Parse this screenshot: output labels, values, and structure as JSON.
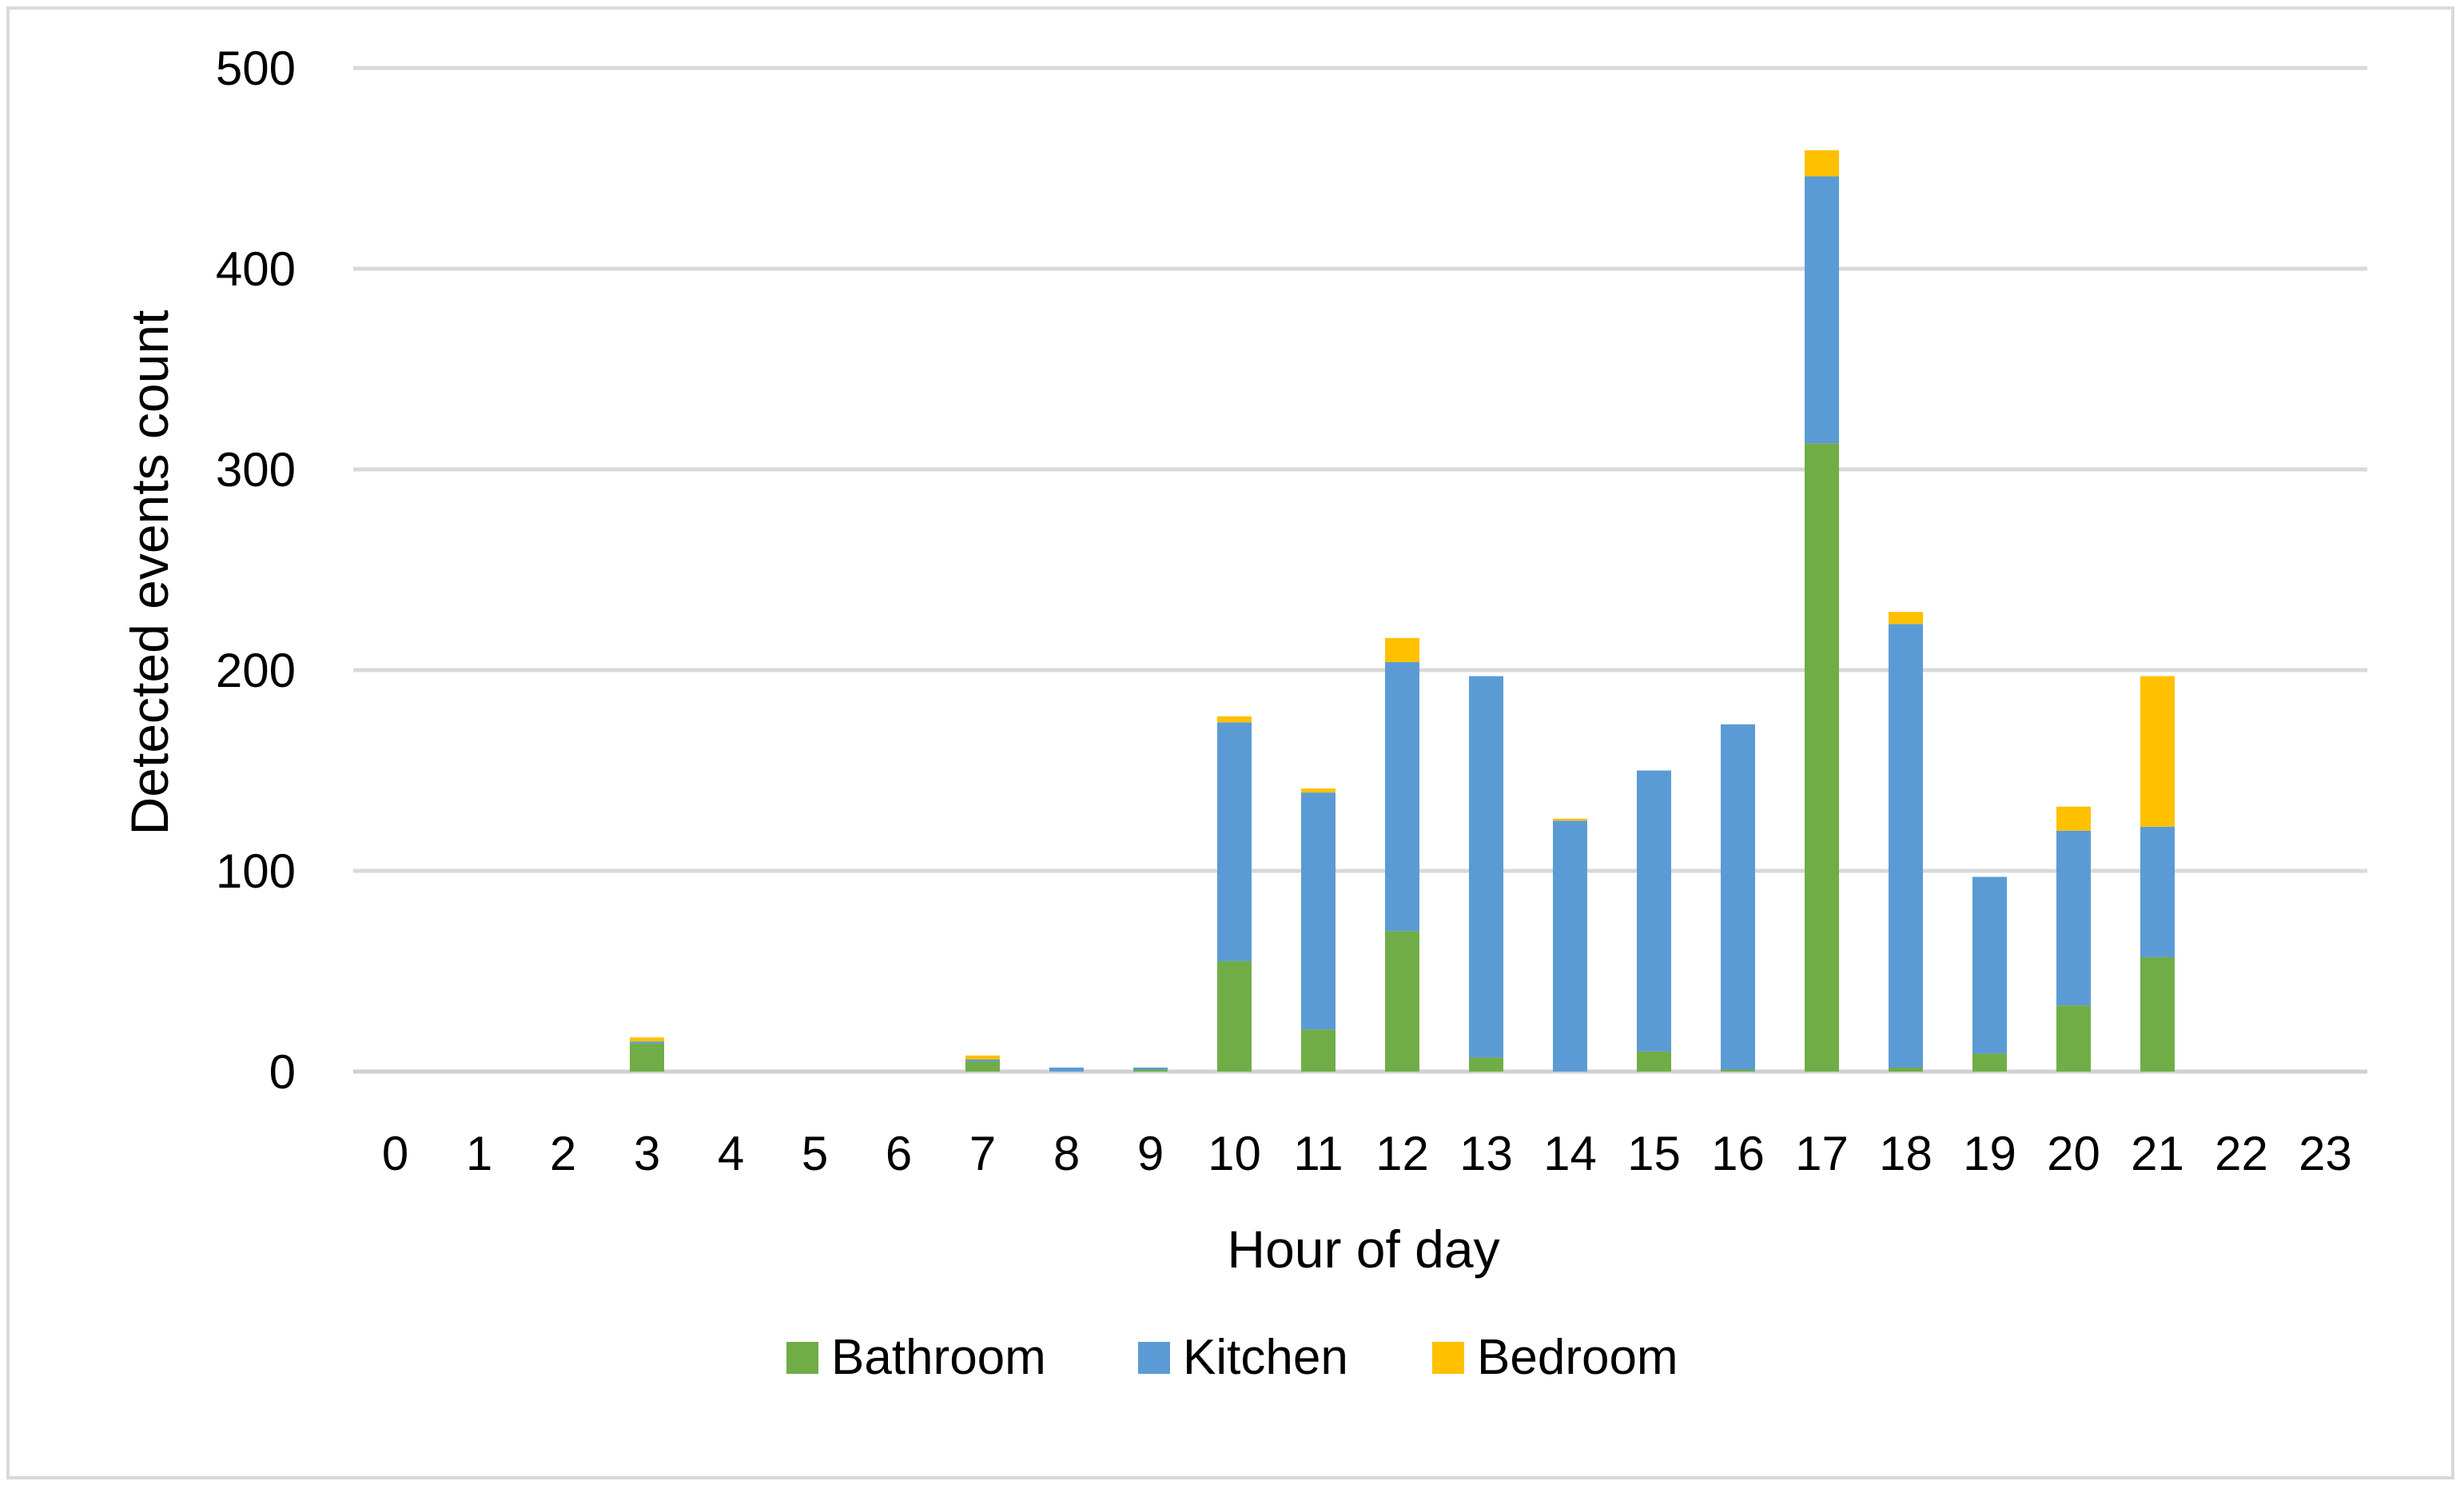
{
  "chart_data": {
    "type": "bar",
    "stacked": true,
    "title": "",
    "xlabel": "Hour of day",
    "ylabel": "Detected events count",
    "ylim": [
      0,
      500
    ],
    "yticks": [
      0,
      100,
      200,
      300,
      400,
      500
    ],
    "grid": true,
    "legend_position": "bottom",
    "categories": [
      "0",
      "1",
      "2",
      "3",
      "4",
      "5",
      "6",
      "7",
      "8",
      "9",
      "10",
      "11",
      "12",
      "13",
      "14",
      "15",
      "16",
      "17",
      "18",
      "19",
      "20",
      "21",
      "22",
      "23"
    ],
    "series": [
      {
        "name": "Bathroom",
        "color": "#70ad47",
        "values": [
          0,
          0,
          0,
          14,
          0,
          0,
          0,
          5,
          0,
          1,
          55,
          21,
          70,
          7,
          0,
          10,
          1,
          313,
          2,
          9,
          33,
          57,
          0,
          0
        ]
      },
      {
        "name": "Kitchen",
        "color": "#5b9bd5",
        "values": [
          0,
          0,
          0,
          1,
          0,
          0,
          0,
          1,
          2,
          1,
          119,
          118,
          134,
          190,
          125,
          140,
          172,
          133,
          221,
          88,
          87,
          65,
          0,
          0
        ]
      },
      {
        "name": "Bedroom",
        "color": "#ffc000",
        "values": [
          0,
          0,
          0,
          2,
          0,
          0,
          0,
          2,
          0,
          0,
          3,
          2,
          12,
          0,
          1,
          0,
          0,
          13,
          6,
          0,
          12,
          75,
          0,
          0
        ]
      }
    ]
  }
}
